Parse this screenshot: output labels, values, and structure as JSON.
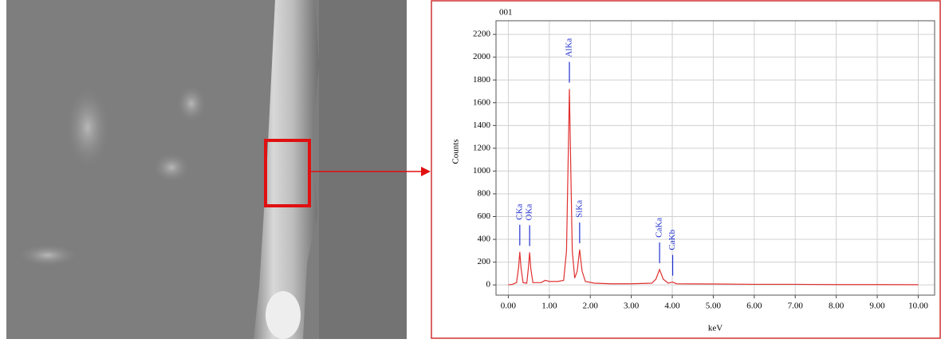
{
  "chart_data": {
    "type": "line",
    "title": "001",
    "x_label": "keV",
    "y_label": "Counts",
    "x": [
      0.0,
      0.1,
      0.2,
      0.25,
      0.28,
      0.31,
      0.36,
      0.45,
      0.49,
      0.52,
      0.55,
      0.6,
      0.8,
      0.9,
      1.0,
      1.2,
      1.35,
      1.42,
      1.46,
      1.49,
      1.52,
      1.56,
      1.62,
      1.68,
      1.74,
      1.8,
      1.88,
      2.1,
      2.5,
      3.0,
      3.5,
      3.6,
      3.69,
      3.78,
      3.9,
      4.01,
      4.1,
      5.0,
      6.0,
      7.0,
      8.0,
      9.0,
      10.0
    ],
    "series": [
      {
        "name": "001",
        "color": "#e03030",
        "values": [
          0,
          5,
          20,
          150,
          290,
          150,
          20,
          15,
          150,
          285,
          140,
          20,
          20,
          40,
          30,
          30,
          40,
          300,
          1100,
          1720,
          1100,
          300,
          60,
          120,
          310,
          120,
          30,
          15,
          10,
          10,
          15,
          50,
          135,
          50,
          15,
          25,
          10,
          8,
          5,
          5,
          3,
          3,
          2
        ]
      }
    ],
    "xlim": [
      -0.3,
      10.4
    ],
    "ylim": [
      -90,
      2320
    ],
    "xticks": [
      {
        "value": 0,
        "label": "0.00"
      },
      {
        "value": 1,
        "label": "1.00"
      },
      {
        "value": 2,
        "label": "2.00"
      },
      {
        "value": 3,
        "label": "3.00"
      },
      {
        "value": 4,
        "label": "4.00"
      },
      {
        "value": 5,
        "label": "5.00"
      },
      {
        "value": 6,
        "label": "6.00"
      },
      {
        "value": 7,
        "label": "7.00"
      },
      {
        "value": 8,
        "label": "8.00"
      },
      {
        "value": 9,
        "label": "9.00"
      },
      {
        "value": 10,
        "label": "10.00"
      }
    ],
    "yticks": [
      0,
      200,
      400,
      600,
      800,
      1000,
      1200,
      1400,
      1600,
      1800,
      2000,
      2200
    ],
    "grid": true,
    "annotations": [
      {
        "text": "CKa",
        "x": 0.28
      },
      {
        "text": "OKa",
        "x": 0.52
      },
      {
        "text": "AlKa",
        "x": 1.49
      },
      {
        "text": "SiKa",
        "x": 1.74
      },
      {
        "text": "CaKa",
        "x": 3.69
      },
      {
        "text": "CaKb",
        "x": 4.01
      }
    ],
    "annotation_color": "#2030d0"
  }
}
